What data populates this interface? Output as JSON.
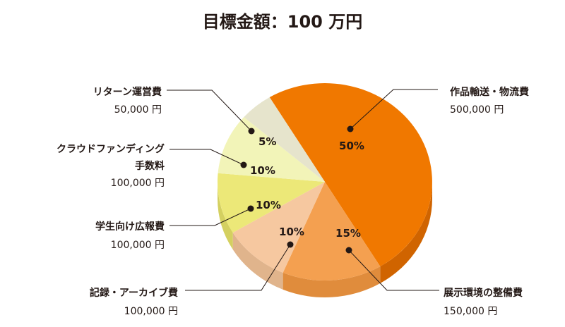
{
  "chart_data": {
    "type": "pie",
    "title": "目標金額：100 万円",
    "slices": [
      {
        "label": "作品輸送・物流費",
        "amount": "500,000 円",
        "value": 50,
        "percent_label": "50%",
        "color": "#f07800",
        "side_color": "#d06400"
      },
      {
        "label": "展示環境の整備費",
        "amount": "150,000 円",
        "value": 15,
        "percent_label": "15%",
        "color": "#f4a050",
        "side_color": "#e08c3c"
      },
      {
        "label": "記録・アーカイブ費",
        "amount": "100,000 円",
        "value": 10,
        "percent_label": "10%",
        "color": "#f6c8a0",
        "side_color": "#e0b48c"
      },
      {
        "label": "学生向け広報費",
        "amount": "100,000 円",
        "value": 10,
        "percent_label": "10%",
        "color": "#ece878",
        "side_color": "#d4d060"
      },
      {
        "label": "クラウドファンディング 手数料",
        "label_lines": [
          "クラウドファンディング",
          "手数料"
        ],
        "amount": "100,000 円",
        "value": 10,
        "percent_label": "10%",
        "color": "#f2f4b8",
        "side_color": "#dcdea4"
      },
      {
        "label": "リターン運営費",
        "amount": "50,000 円",
        "value": 5,
        "percent_label": "5%",
        "color": "#e6e4cc",
        "side_color": "#d0ceb8"
      }
    ]
  }
}
